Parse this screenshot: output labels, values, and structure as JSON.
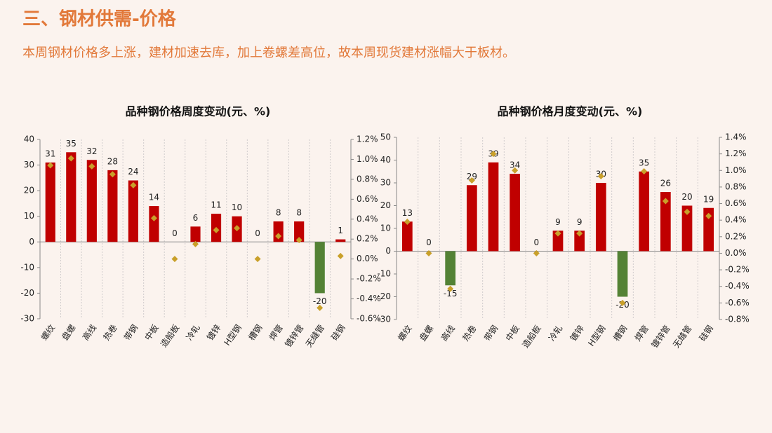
{
  "header": {
    "title": "三、钢材供需-价格",
    "subtitle": "本周钢材价格多上涨，建材加速去库，加上卷螺差高位，故本周现货建材涨幅大于板材。"
  },
  "chart_data": [
    {
      "type": "bar",
      "title": "品种钢价格周度变动(元、%)",
      "categories": [
        "螺纹",
        "盘螺",
        "高线",
        "热卷",
        "带钢",
        "中板",
        "造船板",
        "冷轧",
        "镀锌",
        "H型钢",
        "槽钢",
        "焊管",
        "镀锌管",
        "无缝管",
        "硅钢"
      ],
      "series": [
        {
          "color": "#c00000",
          "negative_color": "#548235",
          "values": [
            31,
            35,
            32,
            28,
            24,
            14,
            0,
            6,
            11,
            10,
            0,
            8,
            8,
            -20,
            1
          ]
        },
        {
          "axis": "y2",
          "marker": "diamond",
          "color": "#c9a02a",
          "values": [
            0.94,
            1.01,
            0.93,
            0.85,
            0.74,
            0.41,
            0.0,
            0.15,
            0.29,
            0.31,
            0.0,
            0.23,
            0.19,
            -0.49,
            0.03
          ]
        }
      ],
      "ylim": [
        -30,
        40
      ],
      "yticks": [
        -30,
        -20,
        -10,
        0,
        10,
        20,
        30,
        40
      ],
      "y2lim": [
        -0.6,
        1.2
      ],
      "y2ticks": [
        {
          "value": -0.6,
          "label": "-0.6%"
        },
        {
          "value": -0.4,
          "label": "-0.4%"
        },
        {
          "value": -0.2,
          "label": "-0.2%"
        },
        {
          "value": 0,
          "label": "0.0%"
        },
        {
          "value": 0.2,
          "label": "0.2%"
        },
        {
          "value": 0.4,
          "label": "0.4%"
        },
        {
          "value": 0.6,
          "label": "0.6%"
        },
        {
          "value": 0.8,
          "label": "0.8%"
        },
        {
          "value": 1.0,
          "label": "1.0%"
        },
        {
          "value": 1.2,
          "label": "1.2%"
        }
      ],
      "x_grid": true
    },
    {
      "type": "bar",
      "title": "品种钢价格月度变动(元、%)",
      "categories": [
        "螺纹",
        "盘螺",
        "高线",
        "热卷",
        "带钢",
        "中板",
        "造船板",
        "冷轧",
        "镀锌",
        "H型钢",
        "槽钢",
        "焊管",
        "镀锌管",
        "无缝管",
        "硅钢"
      ],
      "series": [
        {
          "color": "#c00000",
          "negative_color": "#548235",
          "values": [
            13,
            0,
            -15,
            29,
            39,
            34,
            0,
            9,
            9,
            30,
            -20,
            35,
            26,
            20,
            19
          ]
        },
        {
          "axis": "y2",
          "marker": "diamond",
          "color": "#c9a02a",
          "values": [
            0.38,
            0.0,
            -0.43,
            0.88,
            1.2,
            1.0,
            0.0,
            0.24,
            0.24,
            0.93,
            -0.6,
            0.99,
            0.63,
            0.5,
            0.45
          ]
        }
      ],
      "ylim": [
        -30,
        50
      ],
      "yticks": [
        -30,
        -20,
        -10,
        0,
        10,
        20,
        30,
        40,
        50
      ],
      "y2lim": [
        -0.8,
        1.4
      ],
      "y2ticks": [
        {
          "value": -0.8,
          "label": "-0.8%"
        },
        {
          "value": -0.6,
          "label": "-0.6%"
        },
        {
          "value": -0.4,
          "label": "-0.4%"
        },
        {
          "value": -0.2,
          "label": "-0.2%"
        },
        {
          "value": 0,
          "label": "0.0%"
        },
        {
          "value": 0.2,
          "label": "0.2%"
        },
        {
          "value": 0.4,
          "label": "0.4%"
        },
        {
          "value": 0.6,
          "label": "0.6%"
        },
        {
          "value": 0.8,
          "label": "0.8%"
        },
        {
          "value": 1.0,
          "label": "1.0%"
        },
        {
          "value": 1.2,
          "label": "1.2%"
        },
        {
          "value": 1.4,
          "label": "1.4%"
        }
      ],
      "x_grid": true
    }
  ]
}
